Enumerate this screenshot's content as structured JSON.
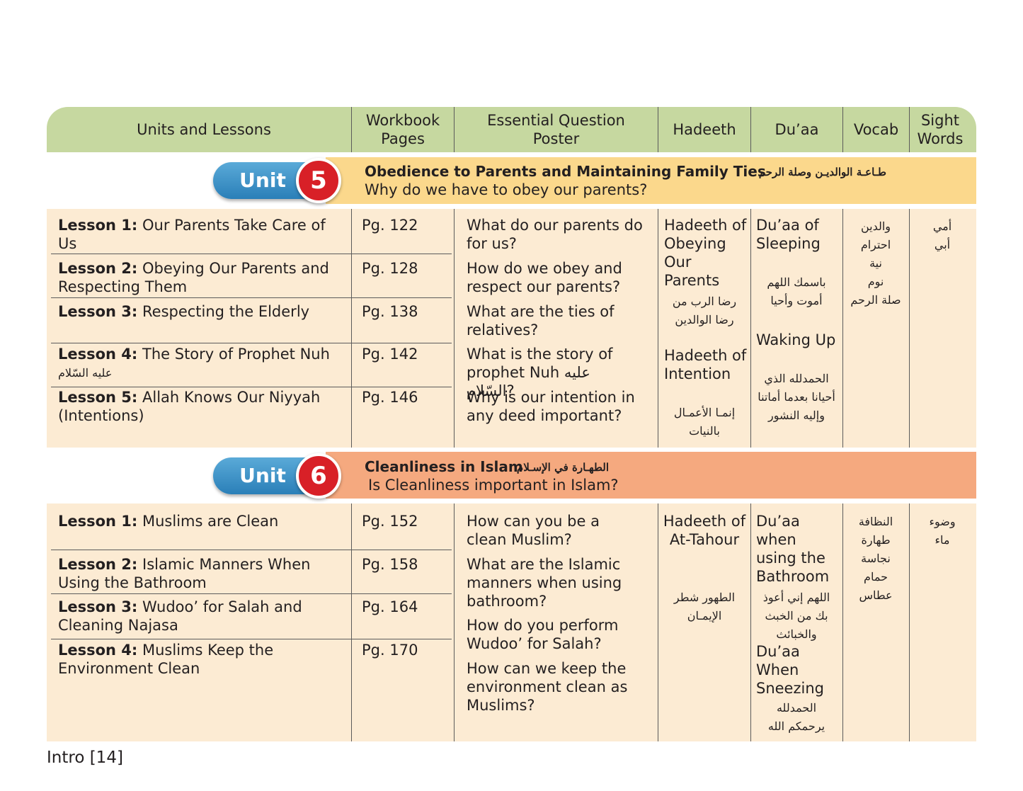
{
  "header": {
    "col1": "Units and Lessons",
    "col2": "Workbook\nPages",
    "col3": "Essential Question\nPoster",
    "col4": "Hadeeth",
    "col5": "Du’aa",
    "col6": "Vocab",
    "col7": "Sight\nWords"
  },
  "unit5": {
    "label": "Unit",
    "number": "5",
    "title": "Obedience to Parents and Maintaining Family Ties",
    "title_ar": "طـاعـة الوالديـن وصلة الرحم",
    "question": "Why do we have to obey our parents?",
    "lessons": [
      {
        "bold": "Lesson 1:",
        "text": " Our Parents Take Care of Us",
        "ar": "",
        "page": "Pg. 122",
        "q": "What do our parents do for us?"
      },
      {
        "bold": "Lesson 2:",
        "text": " Obeying Our Parents and Respecting Them",
        "ar": "",
        "page": "Pg. 128",
        "q": "How do we obey and respect our parents?"
      },
      {
        "bold": "Lesson 3:",
        "text": " Respecting the Elderly",
        "ar": "",
        "page": "Pg. 138",
        "q": "What are the ties of relatives?"
      },
      {
        "bold": "Lesson 4:",
        "text": " The Story of Prophet Nuh",
        "ar": "عليه السّلام",
        "page": "Pg. 142",
        "q": "What is the story of prophet Nuh عليه السّلام?"
      },
      {
        "bold": "Lesson 5:",
        "text": " Allah Knows Our Niyyah (Intentions)",
        "ar": "",
        "page": "Pg. 146",
        "q": "Why is our intention in any deed important?"
      }
    ],
    "hadeeth1": "Hadeeth of Obeying Our Parents",
    "hadeeth1_ar": "رضا الرب من\nرضا الوالدين",
    "hadeeth2": "Hadeeth of Intention",
    "hadeeth2_ar": "إنمـا الأعمـال\nبالنيات",
    "duaa1": "Du’aa of Sleeping",
    "duaa1_ar": "باسمك اللهم\nأموت وأحيا",
    "duaa2": "Waking Up",
    "duaa2_ar": "الحمدلله الذي\nأحيانا بعدما أماتنا\nوإليه النشور",
    "vocab": "والدين\nاحترام\nنية\nنوم\nصلة الرحم",
    "sight": "أمي\nأبي"
  },
  "unit6": {
    "label": "Unit",
    "number": "6",
    "title": "Cleanliness in Islam",
    "title_ar": "الطهـارة في الإسـلام",
    "question": "Is Cleanliness important in Islam?",
    "lessons": [
      {
        "bold": "Lesson 1:",
        "text": " Muslims are Clean",
        "page": "Pg. 152",
        "q": "How can you be a clean Muslim?"
      },
      {
        "bold": "Lesson 2:",
        "text": " Islamic Manners When Using the Bathroom",
        "page": "Pg. 158",
        "q": "What are the Islamic manners when using bathroom?"
      },
      {
        "bold": "Lesson 3:",
        "text": " Wudoo’ for Salah and Cleaning Najasa",
        "page": "Pg. 164",
        "q": "How do you perform Wudoo’ for Salah?"
      },
      {
        "bold": "Lesson 4:",
        "text": " Muslims Keep the Environment Clean",
        "page": "Pg. 170",
        "q": "How can we keep the environment clean as Muslims?"
      }
    ],
    "hadeeth1": "Hadeeth of At-Tahour",
    "hadeeth1_ar": "الطهور شطر\nالإيمـان",
    "duaa1": "Du’aa when using the Bathroom",
    "duaa1_ar": "اللهم إني أعوذ\nبك من الخبث\nوالخبائث",
    "duaa2": "Du’aa When Sneezing",
    "duaa2_ar": "الحمدلله\nيرحمكم الله",
    "vocab": "النظافة\nطهارة\nنجاسة\nحمام\nعطاس",
    "sight": "وضوء\nماء"
  },
  "footer": "Intro [14]",
  "colors": {
    "header_green": "#c6d8a0",
    "cream": "#fcebd3",
    "unit5_band": "#fbd88c",
    "unit6_band": "#f5a97f",
    "unit_blue": "#2a7fb8",
    "unit_red": "#d82027"
  }
}
